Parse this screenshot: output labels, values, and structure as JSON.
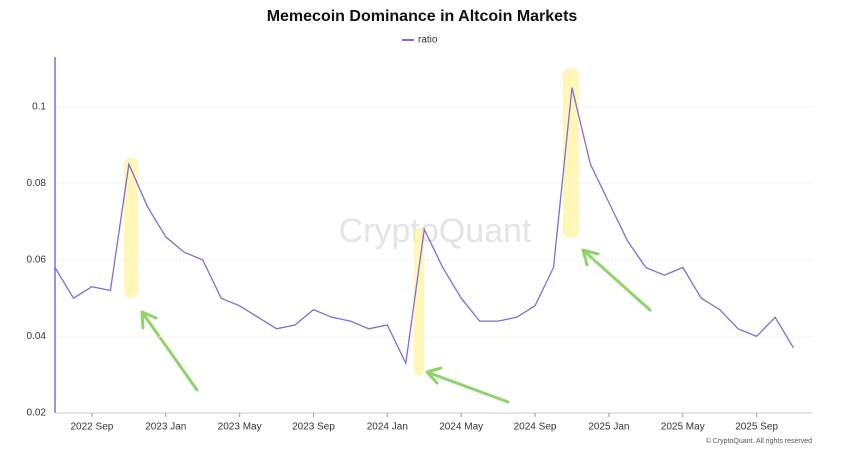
{
  "chart_data": {
    "type": "line",
    "title": "Memecoin Dominance in Altcoin Markets",
    "watermark": "CryptoQuant",
    "copyright": "© CryptoQuant. All rights reserved",
    "x": [
      "2022-07",
      "2022-08",
      "2022-09",
      "2022-10",
      "2022-11",
      "2022-12",
      "2023-01",
      "2023-02",
      "2023-03",
      "2023-04",
      "2023-05",
      "2023-06",
      "2023-07",
      "2023-08",
      "2023-09",
      "2023-10",
      "2023-11",
      "2023-12",
      "2024-01",
      "2024-02",
      "2024-03",
      "2024-04",
      "2024-05",
      "2024-06",
      "2024-07",
      "2024-08",
      "2024-09",
      "2024-10",
      "2024-11",
      "2024-12",
      "2025-01",
      "2025-02",
      "2025-03",
      "2025-04",
      "2025-05",
      "2025-06",
      "2025-07",
      "2025-08",
      "2025-09",
      "2025-10",
      "2025-11"
    ],
    "series": [
      {
        "name": "ratio",
        "color": "#7b6fd6",
        "values": [
          0.058,
          0.05,
          0.053,
          0.052,
          0.085,
          0.074,
          0.066,
          0.062,
          0.06,
          0.05,
          0.048,
          0.045,
          0.042,
          0.043,
          0.047,
          0.045,
          0.044,
          0.042,
          0.043,
          0.033,
          0.068,
          0.058,
          0.05,
          0.044,
          0.044,
          0.045,
          0.048,
          0.058,
          0.105,
          0.085,
          0.075,
          0.065,
          0.058,
          0.056,
          0.058,
          0.05,
          0.047,
          0.042,
          0.04,
          0.045,
          0.037
        ]
      }
    ],
    "xlim": [
      "2022-07",
      "2025-12"
    ],
    "xticks": [
      {
        "value": "2022-09",
        "label": "2022 Sep"
      },
      {
        "value": "2023-01",
        "label": "2023 Jan"
      },
      {
        "value": "2023-05",
        "label": "2023 May"
      },
      {
        "value": "2023-09",
        "label": "2023 Sep"
      },
      {
        "value": "2024-01",
        "label": "2024 Jan"
      },
      {
        "value": "2024-05",
        "label": "2024 May"
      },
      {
        "value": "2024-09",
        "label": "2024 Sep"
      },
      {
        "value": "2025-01",
        "label": "2025 Jan"
      },
      {
        "value": "2025-05",
        "label": "2025 May"
      },
      {
        "value": "2025-09",
        "label": "2025 Sep"
      }
    ],
    "ylim": [
      0.02,
      0.113
    ],
    "yticks": [
      0.02,
      0.04,
      0.06,
      0.08,
      0.1
    ],
    "grid": true,
    "legend": "top"
  }
}
